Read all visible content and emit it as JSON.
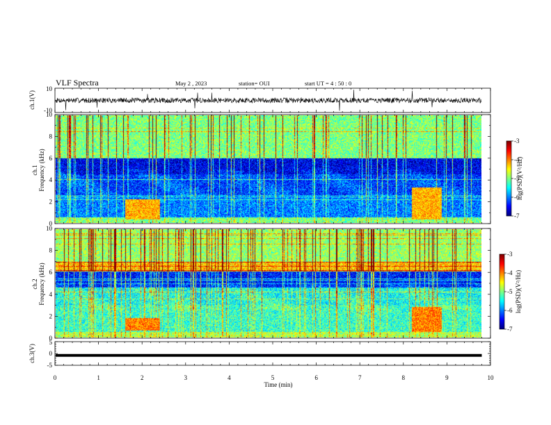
{
  "header": {
    "title": "VLF Spectra",
    "date": "May 2 , 2023",
    "station": "station= OUI",
    "start": "start  UT =   4 : 50 : 0"
  },
  "chart_data": [
    {
      "type": "line",
      "name": "ch1-waveform",
      "ylabel": "ch.1(V)",
      "ylim": [
        -10,
        10
      ],
      "y_ticks": [
        "10",
        "-10"
      ],
      "xlim": [
        0,
        10
      ],
      "x_unit": "min",
      "trace": "noise band approx. -2.5..2.5 V with occasional spikes"
    },
    {
      "type": "heatmap",
      "name": "ch1-spectrogram",
      "ylabel": "ch.1\nFrequency (kHz)",
      "ylim": [
        0,
        10
      ],
      "y_ticks": [
        "0",
        "2",
        "4",
        "6",
        "8",
        "10"
      ],
      "xlim": [
        0,
        9.8
      ],
      "colorbar": {
        "label": "log(PSD)(V²/Hz)",
        "range": [
          -7,
          -3
        ],
        "ticks": [
          "-3",
          "-4",
          "-5",
          "-6",
          "-7"
        ]
      },
      "bands": [
        {
          "f_low": 6.0,
          "f_high": 10.0,
          "level": -5.0
        },
        {
          "f_low": 4.5,
          "f_high": 6.0,
          "level": -6.6
        },
        {
          "f_low": 2.5,
          "f_high": 4.5,
          "level": -6.3
        },
        {
          "f_low": 0.5,
          "f_high": 2.5,
          "level": -6.0
        },
        {
          "f_low": 0.0,
          "f_high": 0.5,
          "level": -5.0
        }
      ],
      "hot_spots": [
        {
          "t_start": 1.6,
          "t_end": 2.4,
          "f_low": 0.3,
          "f_high": 2.2,
          "level": -4.2
        },
        {
          "t_start": 8.2,
          "t_end": 8.9,
          "f_low": 0.3,
          "f_high": 3.3,
          "level": -4.2
        }
      ]
    },
    {
      "type": "heatmap",
      "name": "ch2-spectrogram",
      "ylabel": "ch.2\nFrequency (kHz)",
      "ylim": [
        0,
        10
      ],
      "y_ticks": [
        "0",
        "2",
        "4",
        "6",
        "8",
        "10"
      ],
      "xlim": [
        0,
        9.8
      ],
      "colorbar": {
        "label": "log(PSD)(V²/Hz)",
        "range": [
          -7,
          -3
        ],
        "ticks": [
          "-3",
          "-4",
          "-5",
          "-6",
          "-7"
        ]
      },
      "bands": [
        {
          "f_low": 7.0,
          "f_high": 10.0,
          "level": -4.9
        },
        {
          "f_low": 6.1,
          "f_high": 7.0,
          "level": -4.3
        },
        {
          "f_low": 4.6,
          "f_high": 6.1,
          "level": -6.4
        },
        {
          "f_low": 3.0,
          "f_high": 4.6,
          "level": -5.5
        },
        {
          "f_low": 0.5,
          "f_high": 3.0,
          "level": -5.3
        },
        {
          "f_low": 0.0,
          "f_high": 0.5,
          "level": -4.8
        }
      ],
      "hot_spots": [
        {
          "t_start": 1.6,
          "t_end": 2.4,
          "f_low": 0.6,
          "f_high": 1.8,
          "level": -4.0
        },
        {
          "t_start": 8.2,
          "t_end": 8.9,
          "f_low": 0.5,
          "f_high": 2.8,
          "level": -4.0
        }
      ]
    },
    {
      "type": "line",
      "name": "ch3-waveform",
      "ylabel": "ch.3(V)",
      "ylim": [
        -5,
        5
      ],
      "y_ticks": [
        "5",
        "0",
        "-5"
      ],
      "xlim": [
        0,
        10
      ],
      "values_constant": -0.8
    }
  ],
  "xaxis": {
    "xlabel": "Time  (min)",
    "tick_labels": [
      "0",
      "1",
      "2",
      "3",
      "4",
      "5",
      "6",
      "7",
      "8",
      "9",
      "10"
    ]
  }
}
